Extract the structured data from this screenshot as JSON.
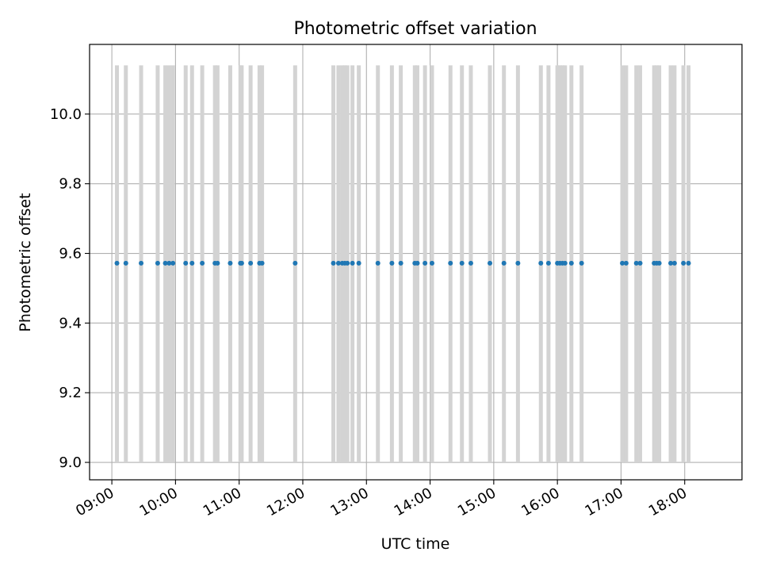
{
  "chart_data": {
    "type": "scatter",
    "title": "Photometric offset variation",
    "xlabel": "UTC time",
    "ylabel": "Photometric offset",
    "xlim_hours": [
      8.65,
      18.9
    ],
    "ylim": [
      8.95,
      10.2
    ],
    "x_ticks": [
      {
        "hour": 9,
        "label": "09:00"
      },
      {
        "hour": 10,
        "label": "10:00"
      },
      {
        "hour": 11,
        "label": "11:00"
      },
      {
        "hour": 12,
        "label": "12:00"
      },
      {
        "hour": 13,
        "label": "13:00"
      },
      {
        "hour": 14,
        "label": "14:00"
      },
      {
        "hour": 15,
        "label": "15:00"
      },
      {
        "hour": 16,
        "label": "16:00"
      },
      {
        "hour": 17,
        "label": "17:00"
      },
      {
        "hour": 18,
        "label": "18:00"
      }
    ],
    "y_ticks": [
      {
        "value": 9.0,
        "label": "9.0"
      },
      {
        "value": 9.2,
        "label": "9.2"
      },
      {
        "value": 9.4,
        "label": "9.4"
      },
      {
        "value": 9.6,
        "label": "9.6"
      },
      {
        "value": 9.8,
        "label": "9.8"
      },
      {
        "value": 10.0,
        "label": "10.0"
      }
    ],
    "grid": true,
    "errorbar_range": [
      9.0,
      10.14
    ],
    "point_value": 9.572,
    "point_color": "#1f77b4",
    "errorbar_color": "#d3d3d3",
    "x_hours": [
      9.08,
      9.22,
      9.46,
      9.72,
      9.84,
      9.9,
      9.96,
      10.16,
      10.26,
      10.42,
      10.62,
      10.66,
      10.86,
      11.02,
      11.04,
      11.18,
      11.32,
      11.36,
      11.88,
      12.48,
      12.56,
      12.62,
      12.66,
      12.7,
      12.78,
      12.88,
      13.18,
      13.4,
      13.54,
      13.76,
      13.8,
      13.92,
      14.03,
      14.32,
      14.5,
      14.64,
      14.94,
      15.16,
      15.38,
      15.74,
      15.86,
      16.0,
      16.04,
      16.08,
      16.12,
      16.22,
      16.38,
      17.02,
      17.08,
      17.24,
      17.3,
      17.52,
      17.56,
      17.6,
      17.78,
      17.84,
      17.98,
      18.06
    ]
  }
}
